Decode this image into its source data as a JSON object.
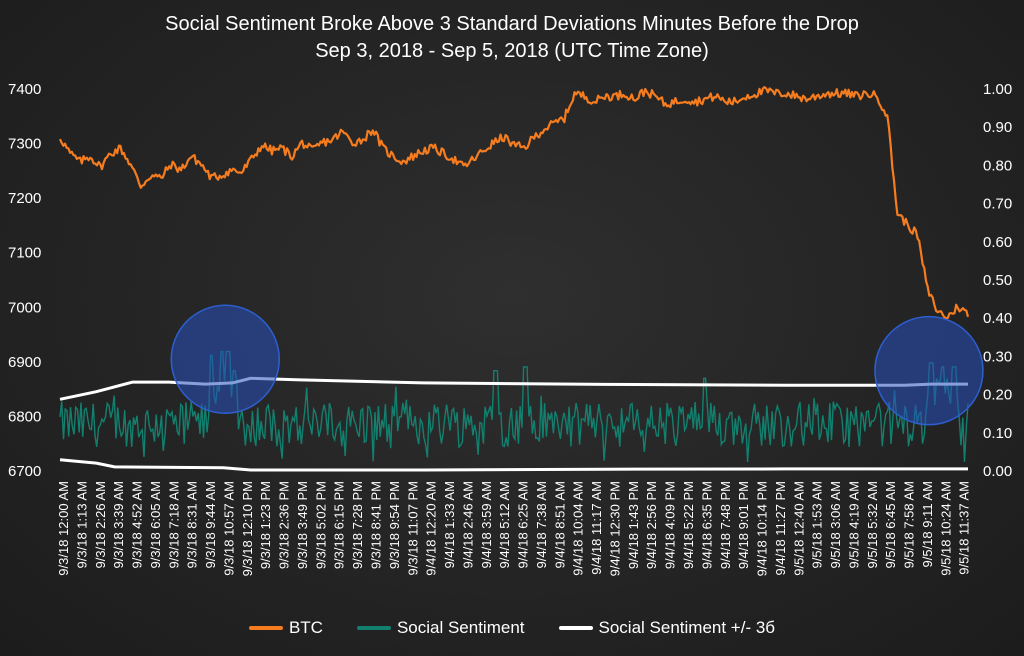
{
  "chart_data": {
    "type": "line",
    "title": "Social Sentiment Broke Above 3 Standard Deviations Minutes Before the Drop",
    "subtitle": "Sep 3, 2018 - Sep 5, 2018 (UTC Time Zone)",
    "left_axis": {
      "ylim": [
        6700,
        7400
      ],
      "ticks": [
        "6700",
        "6800",
        "6900",
        "7000",
        "7100",
        "7200",
        "7300",
        "7400"
      ]
    },
    "right_axis": {
      "ylim": [
        0.0,
        1.0
      ],
      "ticks": [
        "0.00",
        "0.10",
        "0.20",
        "0.30",
        "0.40",
        "0.50",
        "0.60",
        "0.70",
        "0.80",
        "0.90",
        "1.00"
      ]
    },
    "x_tick_labels": [
      "9/3/18 12:00 AM",
      "9/3/18 1:13 AM",
      "9/3/18 2:26 AM",
      "9/3/18 3:39 AM",
      "9/3/18 4:52 AM",
      "9/3/18 6:05 AM",
      "9/3/18 7:18 AM",
      "9/3/18 8:31 AM",
      "9/3/18 9:44 AM",
      "9/3/18 10:57 AM",
      "9/3/18 12:10 PM",
      "9/3/18 1:23 PM",
      "9/3/18 2:36 PM",
      "9/3/18 3:49 PM",
      "9/3/18 5:02 PM",
      "9/3/18 6:15 PM",
      "9/3/18 7:28 PM",
      "9/3/18 8:41 PM",
      "9/3/18 9:54 PM",
      "9/3/18 11:07 PM",
      "9/4/18 12:20 AM",
      "9/4/18 1:33 AM",
      "9/4/18 2:46 AM",
      "9/4/18 3:59 AM",
      "9/4/18 5:12 AM",
      "9/4/18 6:25 AM",
      "9/4/18 7:38 AM",
      "9/4/18 8:51 AM",
      "9/4/18 10:04 AM",
      "9/4/18 11:17 AM",
      "9/4/18 12:30 PM",
      "9/4/18 1:43 PM",
      "9/4/18 2:56 PM",
      "9/4/18 4:09 PM",
      "9/4/18 5:22 PM",
      "9/4/18 6:35 PM",
      "9/4/18 7:48 PM",
      "9/4/18 9:01 PM",
      "9/4/18 10:14 PM",
      "9/4/18 11:27 PM",
      "9/5/18 12:40 AM",
      "9/5/18 1:53 AM",
      "9/5/18 3:06 AM",
      "9/5/18 4:19 AM",
      "9/5/18 5:32 AM",
      "9/5/18 6:45 AM",
      "9/5/18 7:58 AM",
      "9/5/18 9:11 AM",
      "9/5/18 10:24 AM",
      "9/5/18 11:37 AM"
    ],
    "series": [
      {
        "name": "BTC",
        "axis": "left",
        "color": "#f57c1f",
        "points": [
          [
            0,
            7310
          ],
          [
            1,
            7280
          ],
          [
            2,
            7265
          ],
          [
            3,
            7275
          ],
          [
            4,
            7255
          ],
          [
            5,
            7280
          ],
          [
            6,
            7290
          ],
          [
            7,
            7260
          ],
          [
            8,
            7220
          ],
          [
            9,
            7240
          ],
          [
            10,
            7235
          ],
          [
            11,
            7260
          ],
          [
            12,
            7250
          ],
          [
            13,
            7275
          ],
          [
            14,
            7260
          ],
          [
            15,
            7235
          ],
          [
            16,
            7240
          ],
          [
            17,
            7250
          ],
          [
            18,
            7245
          ],
          [
            19,
            7270
          ],
          [
            20,
            7295
          ],
          [
            21,
            7285
          ],
          [
            22,
            7290
          ],
          [
            23,
            7275
          ],
          [
            24,
            7300
          ],
          [
            25,
            7285
          ],
          [
            26,
            7300
          ],
          [
            27,
            7305
          ],
          [
            28,
            7320
          ],
          [
            29,
            7300
          ],
          [
            30,
            7305
          ],
          [
            31,
            7325
          ],
          [
            32,
            7290
          ],
          [
            33,
            7275
          ],
          [
            34,
            7265
          ],
          [
            35,
            7275
          ],
          [
            36,
            7285
          ],
          [
            37,
            7290
          ],
          [
            38,
            7280
          ],
          [
            39,
            7270
          ],
          [
            40,
            7255
          ],
          [
            41,
            7270
          ],
          [
            42,
            7285
          ],
          [
            43,
            7300
          ],
          [
            44,
            7310
          ],
          [
            45,
            7295
          ],
          [
            46,
            7290
          ],
          [
            47,
            7310
          ],
          [
            48,
            7325
          ],
          [
            49,
            7335
          ],
          [
            50,
            7345
          ],
          [
            51,
            7390
          ],
          [
            52,
            7385
          ],
          [
            53,
            7375
          ],
          [
            54,
            7385
          ],
          [
            55,
            7385
          ],
          [
            56,
            7390
          ],
          [
            57,
            7380
          ],
          [
            58,
            7395
          ],
          [
            59,
            7385
          ],
          [
            60,
            7370
          ],
          [
            61,
            7375
          ],
          [
            62,
            7380
          ],
          [
            63,
            7375
          ],
          [
            64,
            7380
          ],
          [
            65,
            7385
          ],
          [
            66,
            7375
          ],
          [
            67,
            7375
          ],
          [
            68,
            7385
          ],
          [
            69,
            7390
          ],
          [
            70,
            7395
          ],
          [
            71,
            7390
          ],
          [
            72,
            7390
          ],
          [
            73,
            7385
          ],
          [
            74,
            7380
          ],
          [
            75,
            7385
          ],
          [
            76,
            7390
          ],
          [
            77,
            7390
          ],
          [
            78,
            7390
          ],
          [
            79,
            7385
          ],
          [
            80,
            7390
          ],
          [
            81,
            7385
          ],
          [
            82,
            7350
          ],
          [
            83,
            7170
          ],
          [
            84,
            7150
          ],
          [
            85,
            7130
          ],
          [
            86,
            7030
          ],
          [
            87,
            6990
          ],
          [
            88,
            6980
          ],
          [
            89,
            7000
          ],
          [
            90,
            6985
          ]
        ]
      },
      {
        "name": "Social Sentiment",
        "axis": "right",
        "color": "#12806f",
        "note_base": 0.12,
        "spikes": [
          [
            0.167,
            0.3
          ],
          [
            0.178,
            0.31
          ],
          [
            0.185,
            0.31
          ],
          [
            0.192,
            0.26
          ],
          [
            0.48,
            0.26
          ],
          [
            0.513,
            0.27
          ],
          [
            0.71,
            0.24
          ],
          [
            0.96,
            0.28
          ],
          [
            0.972,
            0.27
          ],
          [
            0.985,
            0.27
          ]
        ]
      },
      {
        "name": "Social Sentiment +/- 3б",
        "axis": "right",
        "color": "#ffffff",
        "upper": [
          [
            0,
            0.185
          ],
          [
            0.04,
            0.205
          ],
          [
            0.08,
            0.23
          ],
          [
            0.12,
            0.23
          ],
          [
            0.16,
            0.225
          ],
          [
            0.19,
            0.228
          ],
          [
            0.21,
            0.24
          ],
          [
            0.26,
            0.236
          ],
          [
            0.4,
            0.228
          ],
          [
            0.6,
            0.224
          ],
          [
            0.8,
            0.222
          ],
          [
            0.93,
            0.222
          ],
          [
            0.96,
            0.225
          ],
          [
            1.0,
            0.225
          ]
        ],
        "lower": [
          [
            0,
            0.027
          ],
          [
            0.04,
            0.018
          ],
          [
            0.06,
            0.008
          ],
          [
            0.18,
            0.006
          ],
          [
            0.21,
            0.0
          ],
          [
            0.4,
            0.0
          ],
          [
            0.6,
            0.002
          ],
          [
            0.8,
            0.003
          ],
          [
            0.93,
            0.003
          ],
          [
            1.0,
            0.003
          ]
        ]
      }
    ],
    "highlights": [
      {
        "x": 0.182,
        "y": 0.29
      },
      {
        "x": 0.957,
        "y": 0.26
      }
    ]
  },
  "title": "Social Sentiment Broke Above 3 Standard Deviations Minutes Before the Drop",
  "subtitle": "Sep 3, 2018 - Sep 5, 2018 (UTC Time Zone)",
  "legend": {
    "btc": "BTC",
    "sentiment": "Social Sentiment",
    "band": "Social Sentiment +/- 3б"
  }
}
